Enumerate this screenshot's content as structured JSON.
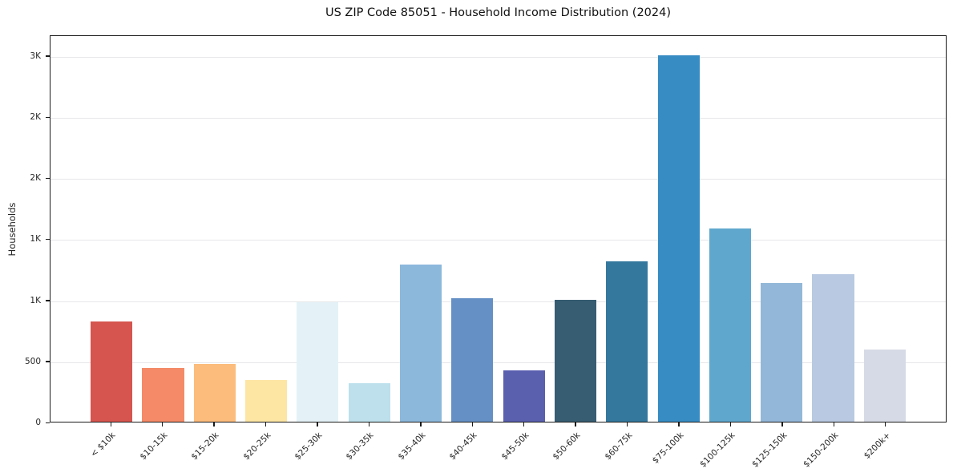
{
  "title": "US ZIP Code 85051 - Household Income Distribution (2024)",
  "chart_data": {
    "type": "bar",
    "title": "US ZIP Code 85051 - Household Income Distribution (2024)",
    "xlabel": "",
    "ylabel": "Households",
    "categories": [
      "< $10k",
      "$10-15k",
      "$15-20k",
      "$20-25k",
      "$25-30k",
      "$30-35k",
      "$35-40k",
      "$40-45k",
      "$45-50k",
      "$50-60k",
      "$60-75k",
      "$75-100k",
      "$100-125k",
      "$125-150k",
      "$150-200k",
      "$200k+"
    ],
    "values": [
      825,
      440,
      475,
      345,
      985,
      315,
      1290,
      1015,
      420,
      1000,
      1320,
      3010,
      1590,
      1140,
      1215,
      590
    ],
    "bar_colors": [
      "#d6554f",
      "#f48a68",
      "#fbbc7c",
      "#fde5a4",
      "#e4f2f8",
      "#bde0ec",
      "#8cb8dc",
      "#6590c5",
      "#5a5fae",
      "#375d72",
      "#34789d",
      "#368cc3",
      "#5fa7cd",
      "#93b7d8",
      "#b9c9e2",
      "#d6d9e6"
    ],
    "ylim": [
      0,
      3170
    ],
    "yticks": [
      {
        "value": 0,
        "label": "0"
      },
      {
        "value": 500,
        "label": "500"
      },
      {
        "value": 1000,
        "label": "1K"
      },
      {
        "value": 1500,
        "label": "1K"
      },
      {
        "value": 2000,
        "label": "2K"
      },
      {
        "value": 2500,
        "label": "2K"
      },
      {
        "value": 3000,
        "label": "3K"
      }
    ],
    "xtick_rotation_deg": 45,
    "grid": "horizontal",
    "legend": "none",
    "background_color": "#ffffff",
    "spine_color": "#1a1a1a",
    "grid_color": "#e7e7ea",
    "text_color": "#262626"
  }
}
